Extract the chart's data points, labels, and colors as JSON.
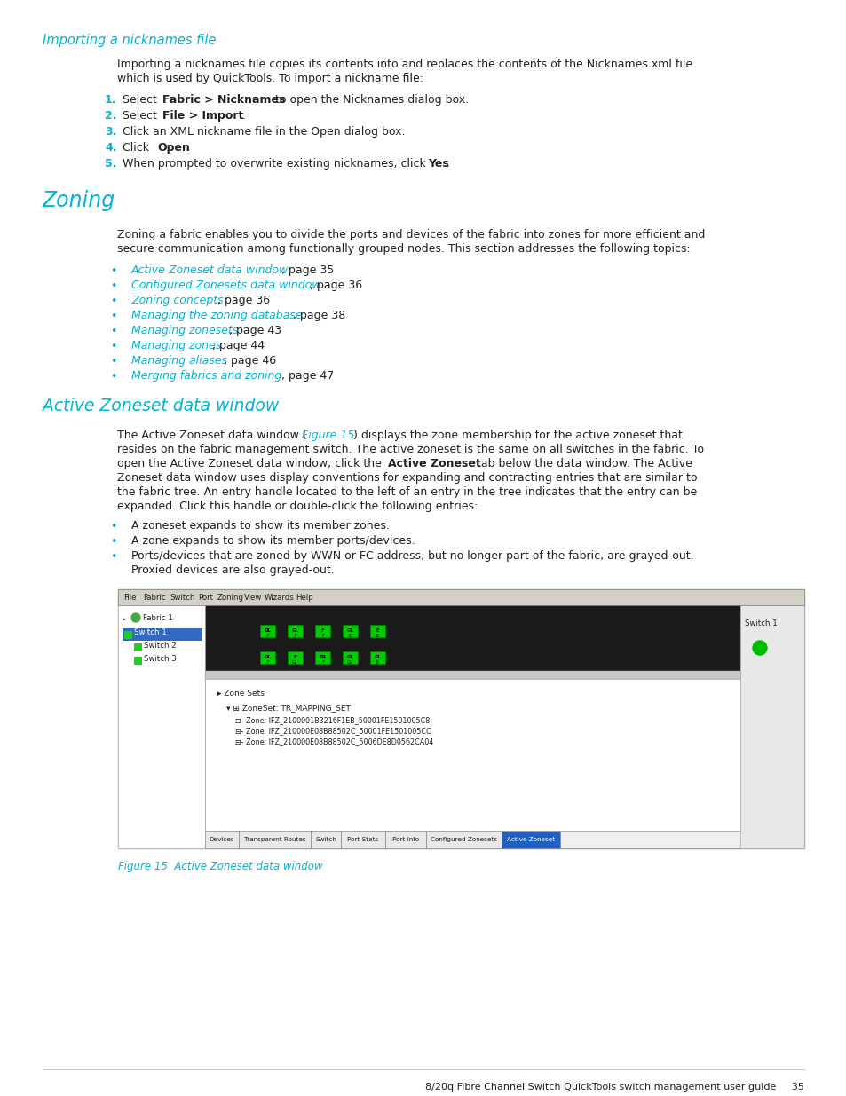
{
  "page_bg": "#ffffff",
  "cyan": "#00b4d8",
  "black": "#231f20",
  "section1_heading": "Importing a nicknames file",
  "section2_heading": "Zoning",
  "section3_heading": "Active Zoneset data window",
  "body1_line1": "Importing a nicknames file copies its contents into and replaces the contents of the Nicknames.xml file",
  "body1_line2": "which is used by QuickTools. To import a nickname file:",
  "steps": [
    [
      "1.",
      "Select ",
      "Fabric > Nicknames",
      " to open the Nicknames dialog box."
    ],
    [
      "2.",
      "Select ",
      "File > Import",
      "."
    ],
    [
      "3.",
      "Click an XML nickname file in the Open dialog box.",
      "",
      ""
    ],
    [
      "4.",
      "Click ",
      "Open",
      "."
    ],
    [
      "5.",
      "When prompted to overwrite existing nicknames, click ",
      "Yes",
      "."
    ]
  ],
  "body2_line1": "Zoning a fabric enables you to divide the ports and devices of the fabric into zones for more efficient and",
  "body2_line2": "secure communication among functionally grouped nodes. This section addresses the following topics:",
  "bullets2": [
    [
      "Active Zoneset data window",
      ", page 35"
    ],
    [
      "Configured Zonesets data window",
      ", page 36"
    ],
    [
      "Zoning concepts",
      ", page 36"
    ],
    [
      "Managing the zoning database",
      ", page 38"
    ],
    [
      "Managing zonesets",
      ", page 43"
    ],
    [
      "Managing zones",
      ", page 44"
    ],
    [
      "Managing aliases",
      ", page 46"
    ],
    [
      "Merging fabrics and zoning",
      ", page 47"
    ]
  ],
  "body3_lines": [
    [
      "The Active Zoneset data window (",
      "Figure 15",
      ") displays the zone membership for the active zoneset that"
    ],
    [
      "resides on the fabric management switch. The active zoneset is the same on all switches in the fabric. To",
      "",
      ""
    ],
    [
      "open the Active Zoneset data window, click the ",
      "Active Zoneset",
      " tab below the data window. The Active"
    ],
    [
      "Zoneset data window uses display conventions for expanding and contracting entries that are similar to",
      "",
      ""
    ],
    [
      "the fabric tree. An entry handle located to the left of an entry in the tree indicates that the entry can be",
      "",
      ""
    ],
    [
      "expanded. Click this handle or double-click the following entries:",
      "",
      ""
    ]
  ],
  "bullets3a": "A zoneset expands to show its member zones.",
  "bullets3b": "A zone expands to show its member ports/devices.",
  "bullets3c1": "Ports/devices that are zoned by WWN or FC address, but no longer part of the fabric, are grayed-out.",
  "bullets3c2": "Proxied devices are also grayed-out.",
  "menu_items": [
    "File",
    "Fabric",
    "Switch",
    "Port",
    "Zoning",
    "View",
    "Wizards",
    "Help"
  ],
  "zones": [
    "Zone: IFZ_2100001B3216F1EB_50001FE1501005C8",
    "Zone: IFZ_210000E08B88502C_50001FE1501005CC",
    "Zone: IFZ_210000E08B88502C_5006DE8D0562CA04"
  ],
  "tabs": [
    "Devices",
    "Transparent Routes",
    "Switch",
    "Port Stats",
    "Port Info",
    "Configured Zonesets",
    "Active Zoneset"
  ],
  "figure_caption": "Figure 15  Active Zoneset data window",
  "footer": "8/20q Fibre Channel Switch QuickTools switch management user guide     35"
}
